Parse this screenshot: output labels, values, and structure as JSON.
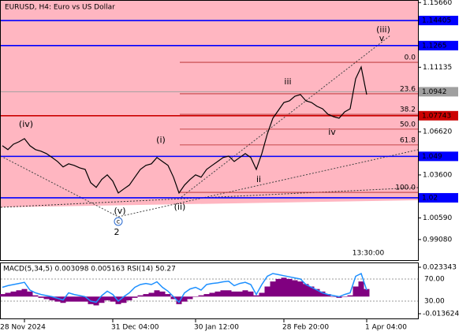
{
  "chart_data": {
    "type": "line",
    "title": "EURUSD, H4:  Euro vs US Dollar",
    "color": "#000000",
    "categories": [
      null,
      null,
      null,
      null,
      "28 Nov 2024",
      null,
      null,
      null,
      null,
      null,
      null,
      null,
      null,
      null,
      null,
      null,
      null,
      null,
      null,
      null,
      "31 Dec 04:00",
      null,
      null,
      null,
      null,
      null,
      null,
      null,
      null,
      null,
      null,
      null,
      null,
      null,
      null,
      "30 Jan 12:00",
      null,
      null,
      null,
      null,
      null,
      null,
      null,
      null,
      null,
      null,
      null,
      null,
      null,
      null,
      null,
      "28 Feb 20:00",
      null,
      null,
      null,
      null,
      null,
      null,
      null,
      null,
      null,
      null,
      null,
      null,
      null,
      null,
      "1 Apr 04:00"
    ],
    "values": [
      1.0564,
      1.0537,
      1.0575,
      1.0592,
      1.0614,
      1.0564,
      1.0537,
      1.0526,
      1.0509,
      1.0482,
      1.0454,
      1.0416,
      1.0438,
      1.0427,
      1.041,
      1.0399,
      1.0306,
      1.0273,
      1.0328,
      1.0361,
      1.0317,
      1.0234,
      1.0262,
      1.0289,
      1.0344,
      1.0399,
      1.0427,
      1.0438,
      1.0482,
      1.0454,
      1.0427,
      1.0344,
      1.0234,
      1.0289,
      1.0328,
      1.0361,
      1.0344,
      1.0399,
      1.0427,
      1.0454,
      1.0482,
      1.0492,
      1.0454,
      1.0482,
      1.0509,
      1.0482,
      1.0399,
      1.0509,
      1.0647,
      1.0757,
      1.0812,
      1.0867,
      1.0878,
      1.0911,
      1.0922,
      1.0878,
      1.0867,
      1.084,
      1.0823,
      1.0784,
      1.0768,
      1.0757,
      1.0801,
      1.0823,
      1.1033,
      1.1115,
      1.0922
    ],
    "ylim": [
      0.9764,
      1.1584
    ],
    "yticks": [
      1.1566,
      1.11135,
      1.0662,
      1.036,
      1.0059,
      0.9908
    ],
    "ytick_labels": [
      "1.15660",
      "1.11135",
      "1.06620",
      "1.03600",
      "1.00590",
      "0.99080"
    ],
    "levels": [
      {
        "value": 1.14405,
        "color": "#0000ff"
      },
      {
        "value": 1.1265,
        "color": "#0000ff"
      },
      {
        "value": 1.0942,
        "color": "#a0a0a0"
      },
      {
        "value": 1.07743,
        "color": "#cc0000"
      },
      {
        "value": 1.049,
        "color": "#0000ff"
      },
      {
        "value": 1.02,
        "color": "#0000ff"
      }
    ],
    "fibo": [
      {
        "value": 1.1148,
        "label": "0.0"
      },
      {
        "value": 1.0928,
        "label": "23.6"
      },
      {
        "value": 1.0784,
        "label": "38.2"
      },
      {
        "value": 1.068,
        "label": "50.0"
      },
      {
        "value": 1.057,
        "label": "61.8"
      },
      {
        "value": 1.0238,
        "label": "100.0"
      }
    ],
    "annotations": [
      {
        "text": "(iv)",
        "color": "#c0392b"
      },
      {
        "text": "(v)",
        "color": "#c0392b"
      },
      {
        "text": "c",
        "color": "#2a6ad0"
      },
      {
        "text": "2",
        "color": "#c0392b"
      },
      {
        "text": "(i)",
        "color": "#c0392b"
      },
      {
        "text": "(ii)",
        "color": "#c0392b"
      },
      {
        "text": "ii",
        "color": "#777777"
      },
      {
        "text": "iii",
        "color": "#777777"
      },
      {
        "text": "iv",
        "color": "#777777"
      },
      {
        "text": "(iii)",
        "color": "#c0392b"
      },
      {
        "text": "v",
        "color": "#777777"
      }
    ],
    "timer": "13:30:00",
    "indicator": {
      "type": "bar",
      "title": "MACD(5,34,5) 0.003098 0.005163 RSI(14) 50.27",
      "color": "#800080",
      "values": [
        0.002,
        0.003,
        0.004,
        0.005,
        0.006,
        0.004,
        0.001,
        -0.001,
        -0.002,
        -0.003,
        -0.004,
        -0.005,
        -0.004,
        -0.004,
        -0.004,
        -0.004,
        -0.006,
        -0.007,
        -0.005,
        -0.003,
        -0.004,
        -0.006,
        -0.005,
        -0.003,
        -0.001,
        0.001,
        0.002,
        0.003,
        0.005,
        0.004,
        0.002,
        -0.002,
        -0.006,
        -0.004,
        -0.002,
        0,
        0.001,
        0.002,
        0.003,
        0.004,
        0.005,
        0.005,
        0.004,
        0.004,
        0.005,
        0.004,
        0.001,
        0.003,
        0.008,
        0.012,
        0.014,
        0.015,
        0.014,
        0.013,
        0.012,
        0.01,
        0.008,
        0.006,
        0.004,
        0.002,
        0,
        -0.001,
        0,
        0.001,
        0.008,
        0.012,
        0.006
      ],
      "ylim": [
        -0.013624,
        0.023343
      ],
      "yticks": [
        -0.013624,
        0.023343
      ],
      "series": [
        {
          "color": "#1e90ff",
          "axis": "y2",
          "values": [
            55,
            58,
            60,
            62,
            64,
            50,
            45,
            42,
            40,
            38,
            35,
            32,
            45,
            42,
            40,
            38,
            30,
            28,
            40,
            48,
            42,
            30,
            38,
            45,
            55,
            60,
            62,
            60,
            65,
            55,
            48,
            38,
            28,
            45,
            52,
            55,
            50,
            60,
            62,
            63,
            65,
            66,
            58,
            62,
            64,
            60,
            42,
            60,
            75,
            80,
            78,
            76,
            74,
            72,
            70,
            60,
            55,
            50,
            45,
            42,
            40,
            38,
            42,
            45,
            75,
            80,
            50
          ]
        }
      ],
      "y2lim": [
        7.1,
        91.4
      ],
      "y2ticks": [
        {
          "value": 70,
          "label": "70.00"
        },
        {
          "value": 30,
          "label": "30.00"
        }
      ]
    }
  }
}
